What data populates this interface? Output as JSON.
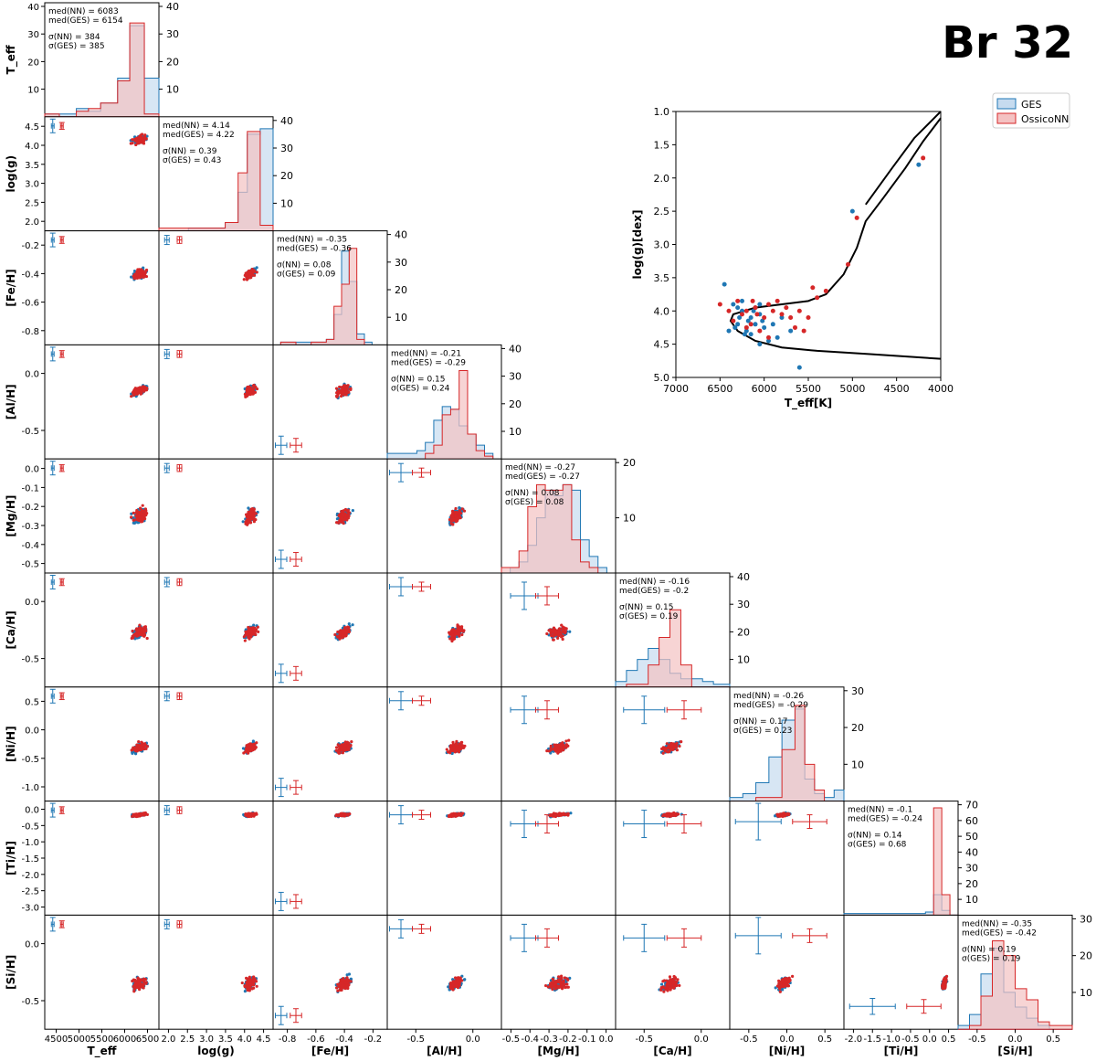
{
  "figure_title": "Br 32",
  "colors": {
    "ges": "#1f77b4",
    "nn": "#d62728",
    "ges_fill": "#c6dbef",
    "nn_fill": "#f4c2c2",
    "overlap": "#b9a9c6"
  },
  "legend": [
    "GES",
    "OssicoNN"
  ],
  "labels": [
    "T_eff",
    "log(g)",
    "[Fe/H]",
    "[Al/H]",
    "[Mg/H]",
    "[Ca/H]",
    "[Ni/H]",
    "[Ti/H]",
    "[Si/H]"
  ],
  "chart_data": [
    {
      "type": "corner",
      "variables": [
        {
          "label": "T_eff",
          "min": 4150,
          "max": 6500,
          "ticks": [
            "4500",
            "5000",
            "5500",
            "6000",
            "6500"
          ],
          "hist_ymax": 40,
          "hist_ticks": [
            "10",
            "20",
            "30",
            "40"
          ]
        },
        {
          "label": "log(g)",
          "min": 1.6,
          "max": 4.7,
          "ticks": [
            "2.0",
            "2.5",
            "3.0",
            "3.5",
            "4.0",
            "4.5"
          ],
          "row_ticks": [
            "2.0",
            "2.5",
            "3.0",
            "3.5",
            "4.0",
            "4.5"
          ],
          "hist_ymax": 40,
          "hist_ticks": [
            "10",
            "20",
            "30",
            "40"
          ]
        },
        {
          "label": "[Fe/H]",
          "min": -0.85,
          "max": -0.1,
          "ticks": [
            "-0.8",
            "-0.6",
            "-0.4",
            "-0.2"
          ],
          "row_ticks": [
            "-0.8",
            "-0.6",
            "-0.4",
            "-0.2"
          ],
          "hist_ymax": 40,
          "hist_ticks": [
            "10",
            "20",
            "30",
            "40"
          ]
        },
        {
          "label": "[Al/H]",
          "min": -0.95,
          "max": 0.4,
          "ticks": [
            "-0.5",
            "0.0"
          ],
          "row_ticks": [
            "-0.5",
            "0.0"
          ],
          "hist_ymax": 40,
          "hist_ticks": [
            "10",
            "20",
            "30",
            "40"
          ]
        },
        {
          "label": "[Mg/H]",
          "min": -0.5,
          "max": 0.02,
          "ticks": [
            "-0.5",
            "-0.4",
            "-0.3",
            "-0.2",
            "-0.1",
            "0.0"
          ],
          "row_ticks": [
            "-0.5",
            "-0.4",
            "-0.3",
            "-0.2",
            "-0.1",
            "0.0"
          ],
          "hist_ymax": 20,
          "hist_ticks": [
            "10",
            "20"
          ]
        },
        {
          "label": "[Ca/H]",
          "min": -0.65,
          "max": 0.4,
          "ticks": [
            "-0.5",
            "0.0"
          ],
          "row_ticks": [
            "-0.5",
            "0.0"
          ],
          "hist_ymax": 40,
          "hist_ticks": [
            "10",
            "20",
            "30",
            "40"
          ]
        },
        {
          "label": "[Ni/H]",
          "min": -1.0,
          "max": 0.75,
          "ticks": [
            "-0.5",
            "0.0",
            "0.5"
          ],
          "row_ticks": [
            "-1.0",
            "-0.5",
            "0.0",
            "0.5"
          ],
          "hist_ymax": 30,
          "hist_ticks": [
            "10",
            "20",
            "30"
          ]
        },
        {
          "label": "[Ti/H]",
          "min": -3.0,
          "max": 0.5,
          "ticks": [
            "-2.0",
            "-1.5",
            "-1.0",
            "-0.5",
            "0.0",
            "0.5"
          ],
          "row_ticks": [
            "-3.0",
            "-2.5",
            "-2.0",
            "-1.5",
            "-1.0",
            "-0.5",
            "0.0"
          ],
          "hist_ymax": 70,
          "hist_ticks": [
            "10",
            "20",
            "30",
            "40",
            "50",
            "60",
            "70"
          ]
        },
        {
          "label": "[Si/H]",
          "min": -0.95,
          "max": 0.55,
          "ticks": [
            "-0.5",
            "0.0",
            "0.5"
          ],
          "row_ticks": [
            "-0.5",
            "0.0"
          ],
          "hist_ymax": 30,
          "hist_ticks": [
            "10",
            "20",
            "30"
          ]
        }
      ],
      "stats": [
        [
          "med(NN) = 6083",
          "med(GES) = 6154",
          "σ(NN) = 384",
          "σ(GES) = 385"
        ],
        [
          "med(NN) = 4.14",
          "med(GES) = 4.22",
          "σ(NN) = 0.39",
          "σ(GES) = 0.43"
        ],
        [
          "med(NN) = -0.35",
          "med(GES) = -0.36",
          "σ(NN) = 0.08",
          "σ(GES) = 0.09"
        ],
        [
          "med(NN) = -0.21",
          "med(GES) = -0.29",
          "σ(NN) = 0.15",
          "σ(GES) = 0.24"
        ],
        [
          "med(NN) = -0.27",
          "med(GES) = -0.27",
          "σ(NN) = 0.08",
          "σ(GES) = 0.08"
        ],
        [
          "med(NN) = -0.16",
          "med(GES) = -0.2",
          "σ(NN) = 0.15",
          "σ(GES) = 0.19"
        ],
        [
          "med(NN) = -0.26",
          "med(GES) = -0.29",
          "σ(NN) = 0.17",
          "σ(GES) = 0.23"
        ],
        [
          "med(NN) = -0.1",
          "med(GES) = -0.24",
          "σ(NN) = 0.14",
          "σ(GES) = 0.68"
        ],
        [
          "med(NN) = -0.35",
          "med(GES) = -0.42",
          "σ(NN) = 0.19",
          "σ(GES) = 0.19"
        ]
      ],
      "histograms": [
        {
          "edges": [
            4150,
            4450,
            4800,
            5050,
            5300,
            5650,
            5900,
            6200,
            6500
          ],
          "ges": [
            1,
            1,
            3,
            2,
            5,
            14,
            33,
            14
          ],
          "nn": [
            1,
            0,
            2,
            3,
            5,
            13,
            34,
            1
          ]
        },
        {
          "edges": [
            1.6,
            2.4,
            3.0,
            3.4,
            3.75,
            4.0,
            4.35,
            4.7
          ],
          "ges": [
            0,
            1,
            1,
            3,
            14,
            35,
            37
          ],
          "nn": [
            1,
            1,
            1,
            3,
            21,
            36,
            2
          ]
        },
        {
          "edges": [
            -0.8,
            -0.7,
            -0.6,
            -0.5,
            -0.45,
            -0.4,
            -0.35,
            -0.3,
            -0.25,
            -0.2
          ],
          "ges": [
            1,
            1,
            1,
            2,
            11,
            34,
            23,
            4,
            1
          ],
          "nn": [
            1,
            0,
            1,
            2,
            14,
            22,
            35,
            2,
            0
          ]
        },
        {
          "edges": [
            -0.95,
            -0.8,
            -0.7,
            -0.6,
            -0.5,
            -0.4,
            -0.3,
            -0.2,
            -0.1,
            0.0,
            0.1,
            0.2,
            0.3
          ],
          "ges": [
            2,
            2,
            2,
            3,
            6,
            14,
            19,
            18,
            12,
            9,
            5,
            2
          ],
          "nn": [
            0,
            0,
            0,
            0,
            2,
            5,
            16,
            18,
            32,
            9,
            3,
            1
          ]
        },
        {
          "edges": [
            -0.5,
            -0.46,
            -0.42,
            -0.38,
            -0.34,
            -0.3,
            -0.26,
            -0.22,
            -0.18,
            -0.14,
            -0.1,
            -0.06,
            -0.02
          ],
          "ges": [
            0,
            1,
            2,
            5,
            10,
            15,
            14,
            16,
            15,
            6,
            3,
            1
          ],
          "nn": [
            1,
            1,
            4,
            12,
            16,
            15,
            15,
            16,
            6,
            2,
            1,
            0
          ]
        },
        {
          "edges": [
            -0.65,
            -0.55,
            -0.45,
            -0.35,
            -0.25,
            -0.15,
            -0.05,
            0.05,
            0.15,
            0.25,
            0.4
          ],
          "ges": [
            2,
            6,
            10,
            14,
            10,
            5,
            3,
            3,
            2,
            1
          ],
          "nn": [
            0,
            1,
            1,
            8,
            18,
            28,
            8,
            0,
            0,
            0
          ]
        },
        {
          "edges": [
            -1.0,
            -0.8,
            -0.6,
            -0.4,
            -0.2,
            0.0,
            0.15,
            0.3,
            0.45,
            0.6,
            0.75
          ],
          "ges": [
            1,
            2,
            5,
            12,
            22,
            25,
            6,
            2,
            1,
            3
          ],
          "nn": [
            0,
            0,
            1,
            1,
            14,
            26,
            10,
            3,
            0,
            0
          ]
        },
        {
          "edges": [
            -3.0,
            -2.5,
            -2.0,
            -1.5,
            -1.0,
            -0.5,
            -0.25,
            0.0,
            0.25,
            0.5
          ],
          "ges": [
            1,
            1,
            1,
            1,
            1,
            2,
            13,
            3,
            0
          ],
          "nn": [
            0,
            0,
            0,
            0,
            0,
            0,
            68,
            13,
            0
          ]
        },
        {
          "edges": [
            -0.95,
            -0.8,
            -0.65,
            -0.5,
            -0.35,
            -0.2,
            -0.05,
            0.1,
            0.25,
            0.45,
            0.55
          ],
          "ges": [
            1,
            4,
            15,
            22,
            10,
            6,
            3,
            1,
            0,
            0
          ],
          "nn": [
            0,
            1,
            9,
            24,
            20,
            11,
            8,
            2,
            1,
            1
          ]
        }
      ],
      "errorbars_ges": [
        {
          "cx": 0.07,
          "cy": 0.92,
          "ex": 0.012,
          "ey": 0.06
        },
        {
          "cx": 0.07,
          "cy": 0.92,
          "ex": 0.02,
          "ey": 0.04
        },
        {
          "cx": 0.07,
          "cy": 0.12,
          "ex": 0.05,
          "ey": 0.08
        },
        {
          "cx": 0.12,
          "cy": 0.88,
          "ex": 0.1,
          "ey": 0.08
        },
        {
          "cx": 0.2,
          "cy": 0.8,
          "ex": 0.12,
          "ey": 0.12
        },
        {
          "cx": 0.25,
          "cy": 0.8,
          "ex": 0.18,
          "ey": 0.12
        },
        {
          "cx": 0.25,
          "cy": 0.82,
          "ex": 0.2,
          "ey": 0.16
        },
        {
          "cx": 0.25,
          "cy": 0.2,
          "ex": 0.2,
          "ey": 0.07
        },
        {
          "cx": 0.15,
          "cy": 0.82,
          "ex": 0.12,
          "ey": 0.07
        }
      ],
      "errorbars_nn": [
        {
          "cx": 0.15,
          "cy": 0.92,
          "ex": 0.012,
          "ey": 0.03
        },
        {
          "cx": 0.18,
          "cy": 0.92,
          "ex": 0.02,
          "ey": 0.03
        },
        {
          "cx": 0.2,
          "cy": 0.12,
          "ex": 0.05,
          "ey": 0.06
        },
        {
          "cx": 0.3,
          "cy": 0.88,
          "ex": 0.08,
          "ey": 0.04
        },
        {
          "cx": 0.4,
          "cy": 0.8,
          "ex": 0.1,
          "ey": 0.08
        },
        {
          "cx": 0.6,
          "cy": 0.8,
          "ex": 0.15,
          "ey": 0.08
        },
        {
          "cx": 0.7,
          "cy": 0.82,
          "ex": 0.15,
          "ey": 0.06
        },
        {
          "cx": 0.7,
          "cy": 0.2,
          "ex": 0.15,
          "ey": 0.06
        },
        {
          "cx": 0.55,
          "cy": 0.82,
          "ex": 0.12,
          "ey": 0.1
        }
      ]
    },
    {
      "type": "scatter",
      "xlabel": "T_eff[K]",
      "ylabel": "log(g)[dex]",
      "xlim": [
        7000,
        4000
      ],
      "ylim": [
        5.0,
        1.0
      ],
      "xticks": [
        "7000",
        "6500",
        "6000",
        "5500",
        "5000",
        "4500",
        "4000"
      ],
      "yticks": [
        "1.0",
        "1.5",
        "2.0",
        "2.5",
        "3.0",
        "3.5",
        "4.0",
        "4.5",
        "5.0"
      ],
      "legend_position": "top-right",
      "isochrone": [
        [
          4000,
          1.1
        ],
        [
          4200,
          1.45
        ],
        [
          4400,
          1.85
        ],
        [
          4650,
          2.3
        ],
        [
          4850,
          2.65
        ],
        [
          4950,
          3.05
        ],
        [
          5100,
          3.45
        ],
        [
          5300,
          3.75
        ],
        [
          5500,
          3.85
        ],
        [
          5800,
          3.9
        ],
        [
          6100,
          3.95
        ],
        [
          6350,
          4.05
        ],
        [
          6380,
          4.15
        ],
        [
          6300,
          4.3
        ],
        [
          6100,
          4.45
        ],
        [
          5800,
          4.55
        ],
        [
          5400,
          4.6
        ],
        [
          4800,
          4.65
        ],
        [
          4000,
          4.72
        ]
      ],
      "isochrone2": [
        [
          4000,
          1.0
        ],
        [
          4300,
          1.4
        ],
        [
          4550,
          1.85
        ],
        [
          4850,
          2.4
        ]
      ],
      "series": [
        {
          "name": "GES",
          "points": [
            [
              6250,
              4.0
            ],
            [
              6150,
              4.1
            ],
            [
              6100,
              3.95
            ],
            [
              6300,
              4.2
            ],
            [
              6050,
              4.05
            ],
            [
              6200,
              4.3
            ],
            [
              6000,
              4.25
            ],
            [
              6350,
              3.9
            ],
            [
              6180,
              4.15
            ],
            [
              6220,
              4.35
            ],
            [
              6400,
              4.3
            ],
            [
              6120,
              4.0
            ],
            [
              5900,
              4.2
            ],
            [
              5850,
              4.4
            ],
            [
              6050,
              4.5
            ],
            [
              6300,
              3.95
            ],
            [
              6100,
              4.2
            ],
            [
              6250,
              3.85
            ],
            [
              6450,
              3.6
            ],
            [
              5600,
              4.85
            ],
            [
              5700,
              4.3
            ],
            [
              5800,
              4.1
            ],
            [
              5000,
              2.5
            ],
            [
              4250,
              1.8
            ],
            [
              5950,
              4.45
            ],
            [
              6150,
              4.35
            ],
            [
              6050,
              3.9
            ],
            [
              6280,
              4.1
            ],
            [
              6330,
              4.25
            ],
            [
              6020,
              4.15
            ]
          ]
        },
        {
          "name": "OssicoNN",
          "points": [
            [
              6100,
              3.95
            ],
            [
              6200,
              4.0
            ],
            [
              6000,
              4.1
            ],
            [
              5900,
              4.0
            ],
            [
              5800,
              4.05
            ],
            [
              5700,
              4.1
            ],
            [
              5600,
              4.0
            ],
            [
              6300,
              3.85
            ],
            [
              6150,
              4.2
            ],
            [
              6050,
              4.3
            ],
            [
              5950,
              3.9
            ],
            [
              5500,
              4.1
            ],
            [
              5400,
              3.8
            ],
            [
              5300,
              3.7
            ],
            [
              5450,
              3.65
            ],
            [
              5050,
              3.3
            ],
            [
              4950,
              2.6
            ],
            [
              4200,
              1.7
            ],
            [
              6250,
              4.05
            ],
            [
              6350,
              4.15
            ],
            [
              6500,
              3.9
            ],
            [
              6400,
              4.0
            ],
            [
              5850,
              3.85
            ],
            [
              5750,
              3.95
            ],
            [
              6080,
              4.05
            ],
            [
              5650,
              4.25
            ],
            [
              5550,
              4.3
            ],
            [
              5950,
              4.4
            ],
            [
              6200,
              4.25
            ],
            [
              6130,
              3.85
            ]
          ]
        }
      ]
    }
  ]
}
